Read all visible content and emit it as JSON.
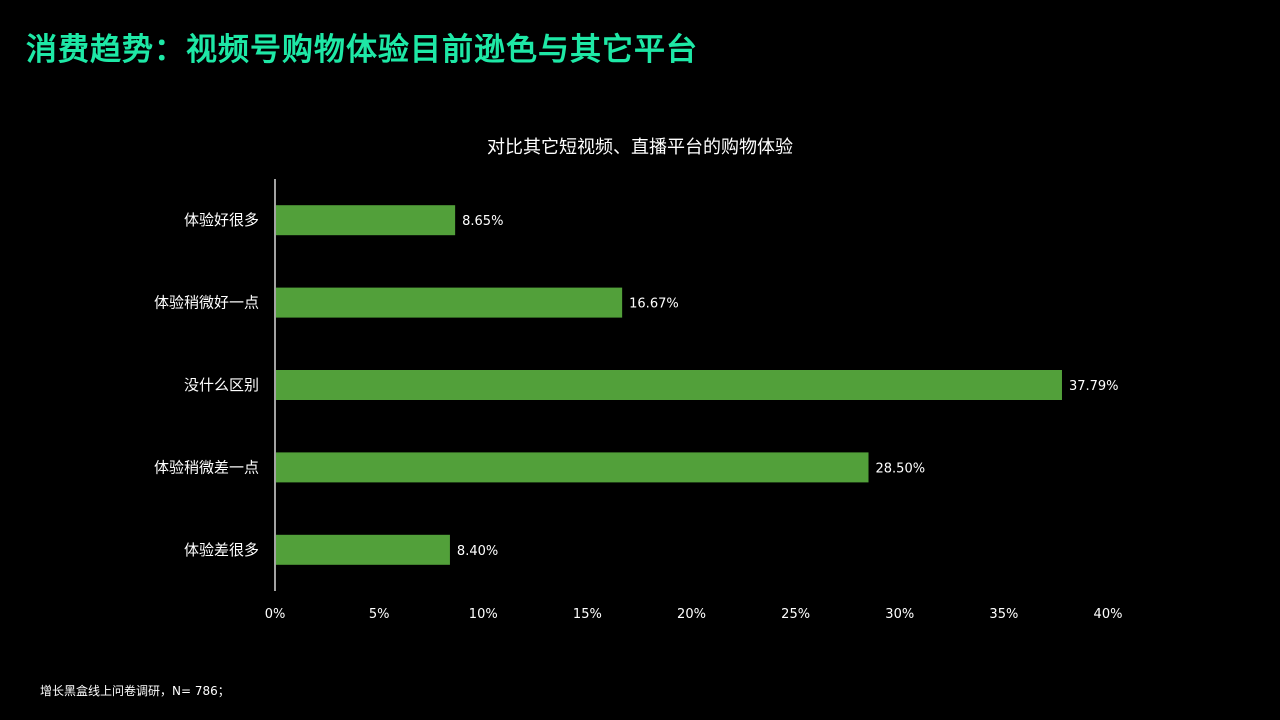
{
  "slide": {
    "title": "消费趋势：视频号购物体验目前逊色与其它平台",
    "footnote": "增长黑盒线上问卷调研，N= 786；"
  },
  "colors": {
    "background": "#000000",
    "title": "#1ee8a6",
    "bar": "#52a03a",
    "text": "#ffffff",
    "axis": "#d9d9d9"
  },
  "chart_data": {
    "type": "bar",
    "orientation": "horizontal",
    "title": "对比其它短视频、直播平台的购物体验",
    "categories": [
      "体验好很多",
      "体验稍微好一点",
      "没什么区别",
      "体验稍微差一点",
      "体验差很多"
    ],
    "values": [
      8.65,
      16.67,
      37.79,
      28.5,
      8.4
    ],
    "value_labels": [
      "8.65%",
      "16.67%",
      "37.79%",
      "28.50%",
      "8.40%"
    ],
    "xlim": [
      0,
      40
    ],
    "xticks": [
      0,
      5,
      10,
      15,
      20,
      25,
      30,
      35,
      40
    ],
    "xtick_labels": [
      "0%",
      "5%",
      "10%",
      "15%",
      "20%",
      "25%",
      "30%",
      "35%",
      "40%"
    ],
    "xlabel": "",
    "ylabel": "",
    "grid": false,
    "legend": "none"
  }
}
